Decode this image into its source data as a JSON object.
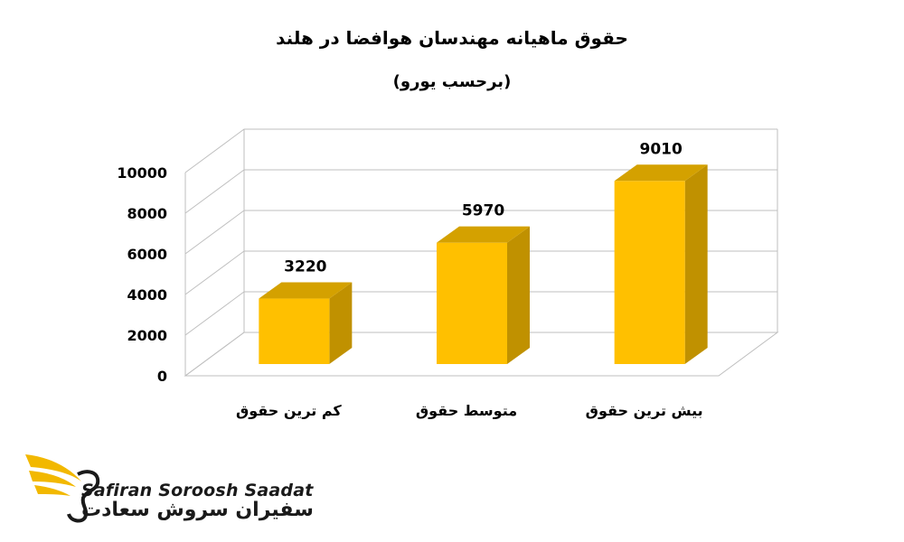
{
  "chart_data": {
    "type": "bar",
    "title": "حقوق ماهیانه مهندسان هوافضا در هلند",
    "subtitle": "(برحسب یورو)",
    "categories": [
      "کم ترین حقوق",
      "متوسط حقوق",
      "بیش ترین حقوق"
    ],
    "values": [
      3220,
      5970,
      9010
    ],
    "ylim": [
      0,
      10000
    ],
    "yticks": [
      0,
      2000,
      4000,
      6000,
      8000,
      10000
    ],
    "grid": true,
    "bar_color": "#FFC000"
  },
  "brand": {
    "name_en": "Safiran Soroosh Saadat",
    "name_fa": "سفیران سروش سعادت",
    "accent_color": "#F2B800"
  }
}
